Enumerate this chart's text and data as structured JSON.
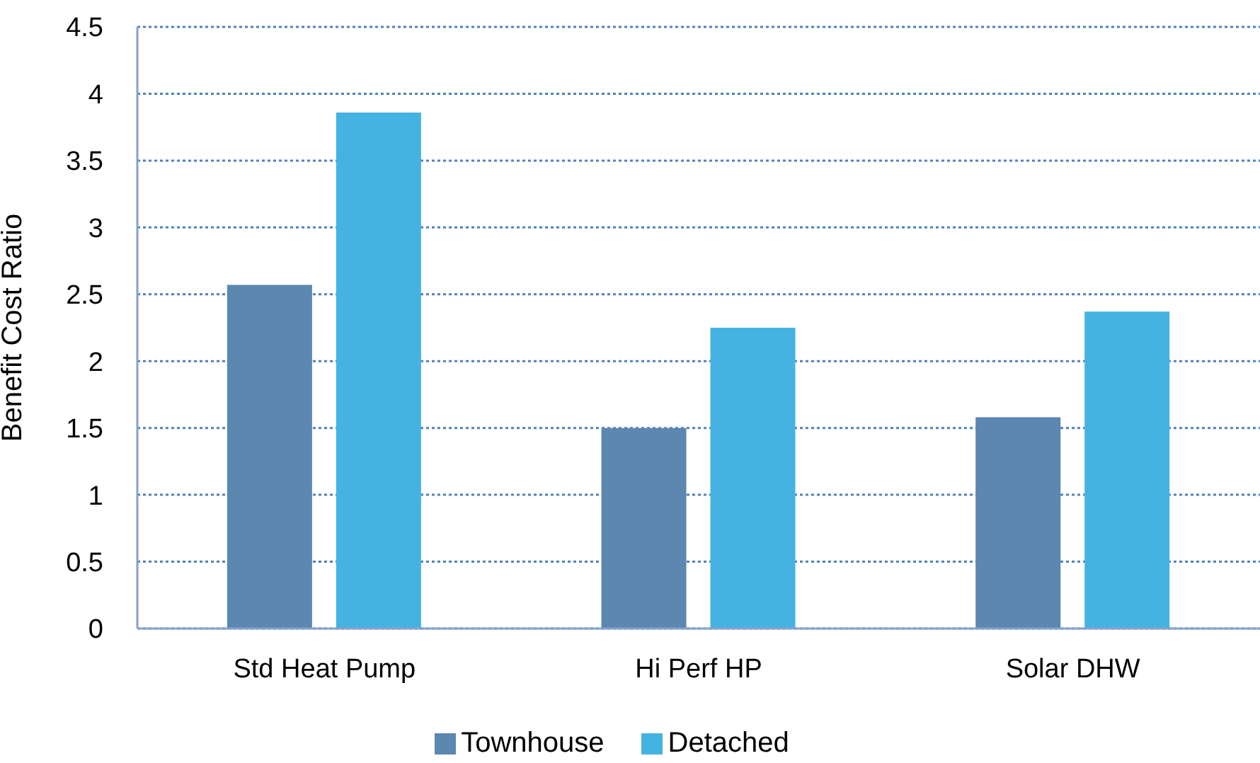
{
  "chart_data": {
    "type": "bar",
    "ylabel": "Benefit Cost Ratio",
    "categories": [
      "Std Heat Pump",
      "Hi Perf HP",
      "Solar DHW"
    ],
    "series": [
      {
        "name": "Townhouse",
        "color": "#5b87b0",
        "values": [
          2.57,
          1.5,
          1.58
        ]
      },
      {
        "name": "Detached",
        "color": "#45b3e1",
        "values": [
          3.86,
          2.25,
          2.37
        ]
      }
    ],
    "ylim": [
      0,
      4.5
    ],
    "yticks": [
      0,
      0.5,
      1,
      1.5,
      2,
      2.5,
      3,
      3.5,
      4,
      4.5
    ],
    "grid": "y",
    "legend": "bottom"
  }
}
